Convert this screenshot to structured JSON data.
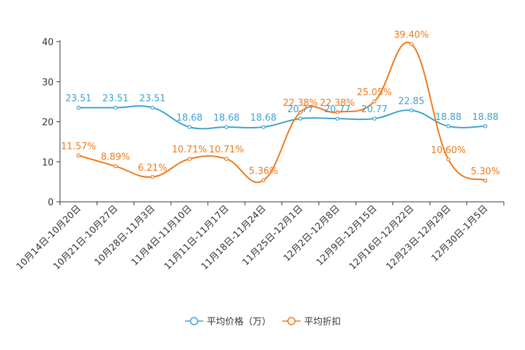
{
  "chart_data": {
    "type": "line",
    "title": "",
    "xlabel": "",
    "ylabel": "",
    "ylim": [
      0,
      40
    ],
    "yticks": [
      0,
      10,
      20,
      30,
      40
    ],
    "grid": false,
    "legend_position": "bottom-center",
    "categories": [
      "10月14日-10月20日",
      "10月21日-10月27日",
      "10月28日-11月3日",
      "11月4日-11月10日",
      "11月11日-11月17日",
      "11月18日-11月24日",
      "11月25日-12月1日",
      "12月2日-12月8日",
      "12月9日-12月15日",
      "12月16日-12月22日",
      "12月23日-12月29日",
      "12月30日-1月5日"
    ],
    "series": [
      {
        "name": "平均价格（万）",
        "color": "#3fa0d0",
        "values": [
          23.51,
          23.51,
          23.51,
          18.68,
          18.68,
          18.68,
          20.77,
          20.77,
          20.77,
          22.85,
          18.88,
          18.88
        ],
        "labels": [
          "23.51",
          "23.51",
          "23.51",
          "18.68",
          "18.68",
          "18.68",
          "20.77",
          "20.77",
          "20.77",
          "22.85",
          "18.88",
          "18.88"
        ]
      },
      {
        "name": "平均折扣",
        "color": "#f07818",
        "values": [
          11.57,
          8.89,
          6.21,
          10.71,
          10.71,
          5.36,
          22.38,
          22.38,
          25.05,
          39.4,
          10.6,
          5.3
        ],
        "labels": [
          "11.57%",
          "8.89%",
          "6.21%",
          "10.71%",
          "10.71%",
          "5.36%",
          "22.38%",
          "22.38%",
          "25.05%",
          "39.40%",
          "10.60%",
          "5.30%"
        ]
      }
    ]
  }
}
